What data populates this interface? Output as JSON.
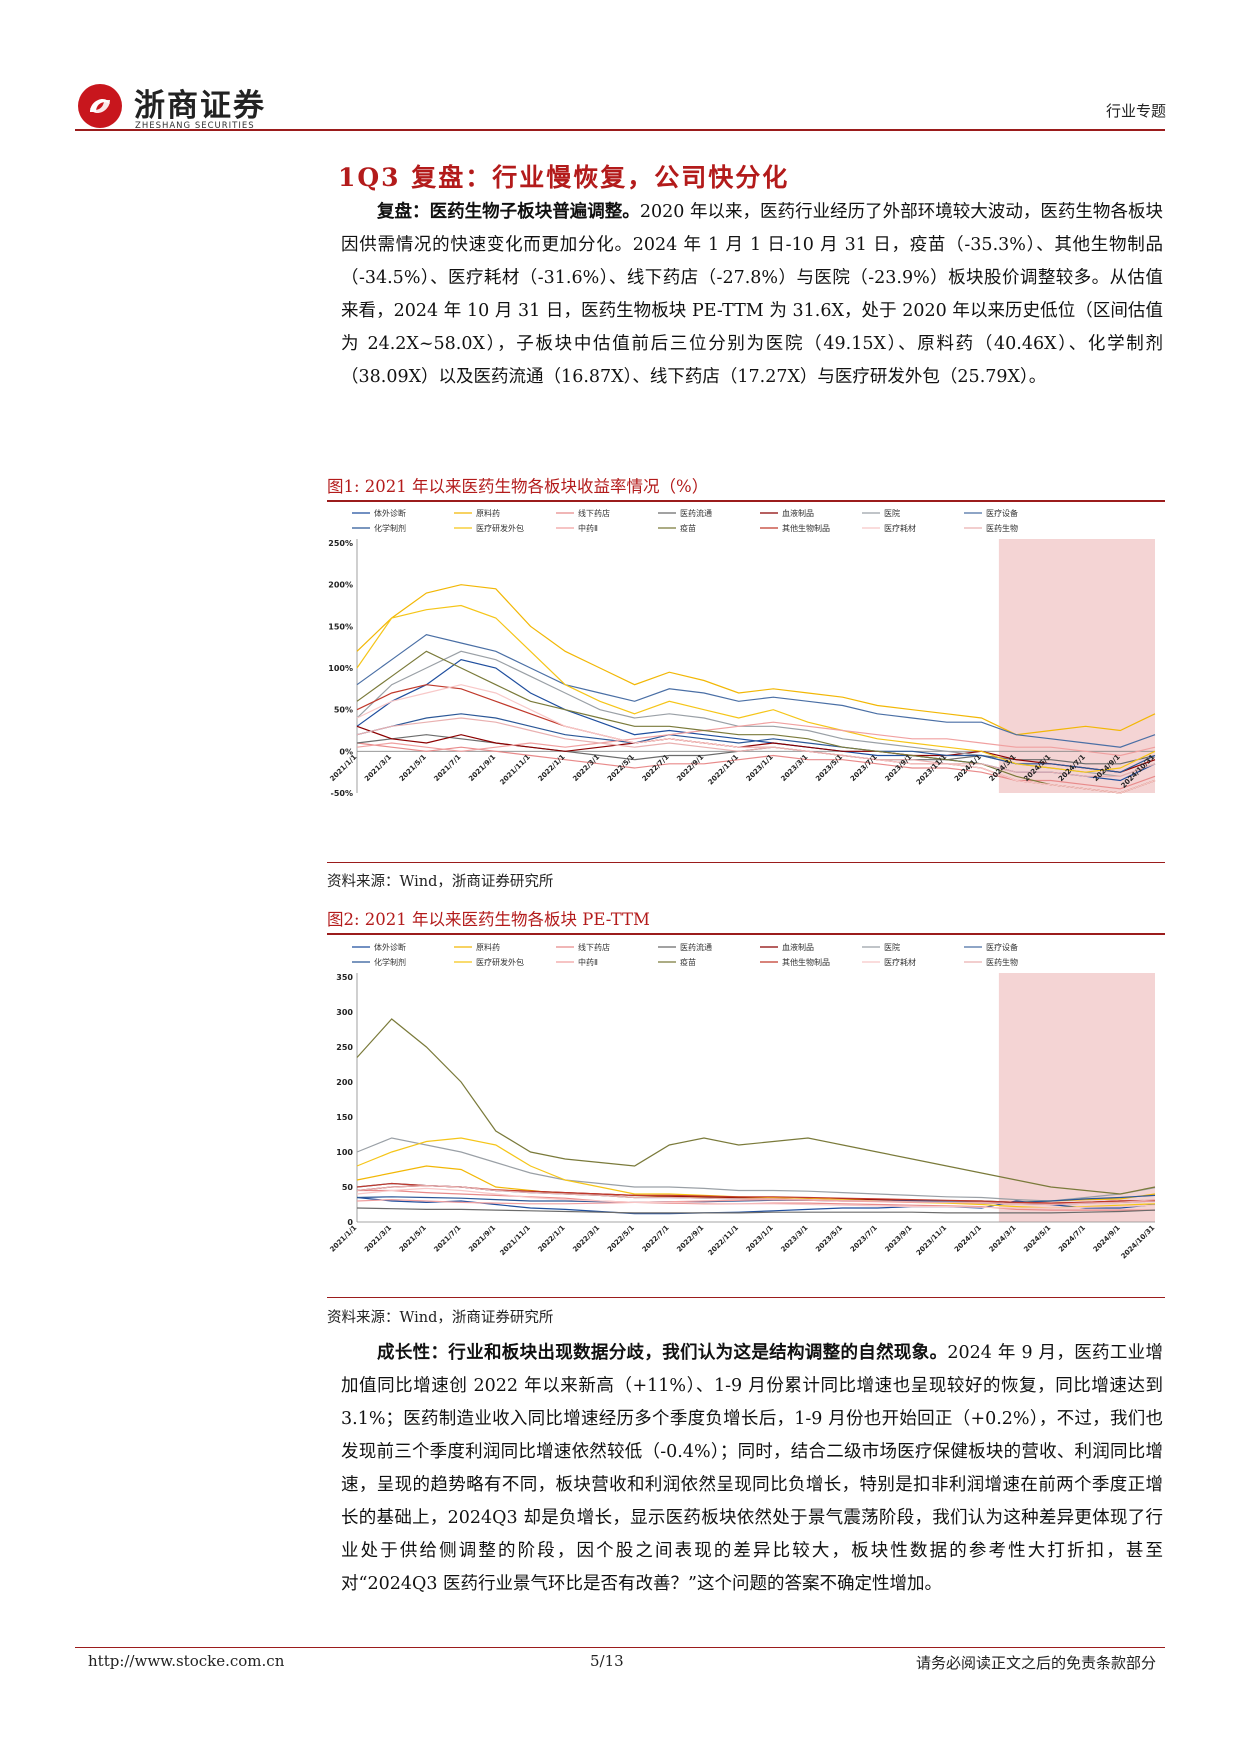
{
  "header": {
    "logo_cn": "浙商证券",
    "logo_en": "ZHESHANG SECURITIES",
    "tag": "行业专题"
  },
  "section": {
    "number": "1",
    "title": "Q3 复盘：行业慢恢复，公司快分化"
  },
  "para1": {
    "lead": "复盘：医药生物子板块普遍调整。",
    "body": "2020 年以来，医药行业经历了外部环境较大波动，医药生物各板块因供需情况的快速变化而更加分化。2024 年 1 月 1 日-10 月 31 日，疫苗（-35.3%）、其他生物制品（-34.5%）、医疗耗材（-31.6%）、线下药店（-27.8%）与医院（-23.9%）板块股价调整较多。从估值来看，2024 年 10 月 31 日，医药生物板块 PE-TTM 为 31.6X，处于 2020 年以来历史低位（区间估值为 24.2X~58.0X），子板块中估值前后三位分别为医院（49.15X）、原料药（40.46X）、化学制剂（38.09X）以及医药流通（16.87X）、线下药店（17.27X）与医疗研发外包（25.79X）。"
  },
  "fig1": {
    "title": "图1:   2021 年以来医药生物各板块收益率情况（%）",
    "source": "资料来源：Wind，浙商证券研究所"
  },
  "fig2": {
    "title": "图2:   2021 年以来医药生物各板块 PE-TTM",
    "source": "资料来源：Wind，浙商证券研究所"
  },
  "para2": {
    "lead": "成长性：行业和板块出现数据分歧，我们认为这是结构调整的自然现象。",
    "body": "2024 年 9 月，医药工业增加值同比增速创 2022 年以来新高（+11%）、1-9 月份累计同比增速也呈现较好的恢复，同比增速达到 3.1%；医药制造业收入同比增速经历多个季度负增长后，1-9 月份也开始回正（+0.2%），不过，我们也发现前三个季度利润同比增速依然较低（-0.4%）；同时，结合二级市场医疗保健板块的营收、利润同比增速，呈现的趋势略有不同，板块营收和利润依然呈现同比负增长，特别是扣非利润增速在前两个季度正增长的基础上，2024Q3 却是负增长，显示医药板块依然处于景气震荡阶段，我们认为这种差异更体现了行业处于供给侧调整的阶段，因个股之间表现的差异比较大，板块性数据的参考性大打折扣，甚至对“2024Q3 医药行业景气环比是否有改善？”这个问题的答案不确定性增加。"
  },
  "footer": {
    "url": "http://www.stocke.com.cn",
    "page": "5/13",
    "disclaimer": "请务必阅读正文之后的免责条款部分"
  },
  "colors": {
    "brand_red": "#b31b1b",
    "shade": "#f4d4d4"
  },
  "chart_data": [
    {
      "type": "line",
      "ylim": [
        -50,
        250
      ],
      "yticks": [
        "250%",
        "200%",
        "150%",
        "100%",
        "50%",
        "0%",
        "-50%"
      ],
      "highlight_region": "2024",
      "x": [
        "2021/1/1",
        "2021/3/1",
        "2021/5/1",
        "2021/7/1",
        "2021/9/1",
        "2021/11/1",
        "2022/1/1",
        "2022/3/1",
        "2022/5/1",
        "2022/7/1",
        "2022/9/1",
        "2022/11/1",
        "2023/1/1",
        "2023/3/1",
        "2023/5/1",
        "2023/7/1",
        "2023/9/1",
        "2023/11/1",
        "2024/1/1",
        "2024/3/1",
        "2024/5/1",
        "2024/7/1",
        "2024/9/1",
        "2024/10/31"
      ],
      "series": [
        {
          "name": "体外诊断",
          "color": "#1f4e9e",
          "values": [
            30,
            60,
            80,
            110,
            100,
            70,
            50,
            35,
            20,
            25,
            20,
            15,
            10,
            5,
            0,
            -5,
            -5,
            -10,
            -15,
            -25,
            -25,
            -30,
            -35,
            -15
          ]
        },
        {
          "name": "原料药",
          "color": "#f2b705",
          "values": [
            120,
            160,
            190,
            200,
            195,
            150,
            120,
            100,
            80,
            95,
            85,
            70,
            75,
            70,
            65,
            55,
            50,
            45,
            40,
            20,
            25,
            30,
            25,
            45
          ]
        },
        {
          "name": "线下药店",
          "color": "#e88a8a",
          "values": [
            10,
            5,
            0,
            5,
            0,
            -5,
            -10,
            -15,
            -20,
            -15,
            -15,
            -10,
            -5,
            -10,
            -10,
            -15,
            -20,
            -20,
            -25,
            -35,
            -35,
            -40,
            -45,
            -30
          ]
        },
        {
          "name": "医药流通",
          "color": "#6b6b6b",
          "values": [
            10,
            15,
            20,
            15,
            10,
            5,
            0,
            -5,
            -10,
            -5,
            -5,
            0,
            5,
            0,
            -5,
            -10,
            -10,
            -10,
            -5,
            -10,
            -10,
            -15,
            -15,
            -5
          ]
        },
        {
          "name": "血液制品",
          "color": "#8b0000",
          "values": [
            30,
            15,
            10,
            20,
            10,
            5,
            0,
            5,
            10,
            15,
            10,
            5,
            10,
            5,
            0,
            0,
            -5,
            -5,
            0,
            -10,
            -15,
            -20,
            -25,
            -10
          ]
        },
        {
          "name": "医院",
          "color": "#9aa0a6",
          "values": [
            40,
            80,
            100,
            120,
            110,
            90,
            70,
            50,
            40,
            45,
            40,
            30,
            30,
            25,
            15,
            10,
            5,
            0,
            -5,
            -15,
            -20,
            -25,
            -30,
            -15
          ]
        },
        {
          "name": "医疗设备",
          "color": "#4a6fa5",
          "values": [
            80,
            110,
            140,
            130,
            120,
            100,
            80,
            70,
            60,
            75,
            70,
            60,
            65,
            60,
            55,
            45,
            40,
            35,
            35,
            20,
            15,
            10,
            5,
            20
          ]
        },
        {
          "name": "化学制剂",
          "color": "#2b5797",
          "values": [
            20,
            30,
            40,
            45,
            40,
            30,
            20,
            15,
            10,
            20,
            15,
            10,
            15,
            10,
            5,
            0,
            0,
            -5,
            -5,
            -15,
            -15,
            -20,
            -25,
            -5
          ]
        },
        {
          "name": "医疗研发外包",
          "color": "#f5c518",
          "values": [
            100,
            160,
            170,
            175,
            160,
            120,
            80,
            60,
            45,
            60,
            50,
            40,
            50,
            35,
            25,
            15,
            10,
            5,
            0,
            -15,
            -20,
            -25,
            -20,
            0
          ]
        },
        {
          "name": "中药Ⅱ",
          "color": "#f0a0a0",
          "values": [
            5,
            10,
            5,
            0,
            5,
            10,
            5,
            10,
            15,
            20,
            25,
            30,
            35,
            30,
            25,
            20,
            15,
            15,
            10,
            5,
            5,
            0,
            -5,
            5
          ]
        },
        {
          "name": "疫苗",
          "color": "#7a7a3a",
          "values": [
            60,
            90,
            120,
            100,
            80,
            60,
            50,
            40,
            30,
            30,
            25,
            20,
            20,
            15,
            5,
            0,
            -5,
            -10,
            -15,
            -30,
            -40,
            -45,
            -50,
            -35
          ]
        },
        {
          "name": "其他生物制品",
          "color": "#c0392b",
          "values": [
            50,
            70,
            80,
            75,
            60,
            45,
            30,
            20,
            10,
            15,
            10,
            5,
            5,
            0,
            -5,
            -10,
            -15,
            -15,
            -20,
            -35,
            -40,
            -45,
            -50,
            -35
          ]
        },
        {
          "name": "医疗耗材",
          "color": "#f8c8c8",
          "values": [
            40,
            60,
            70,
            80,
            70,
            50,
            30,
            20,
            10,
            15,
            10,
            5,
            5,
            0,
            -5,
            -10,
            -15,
            -15,
            -20,
            -35,
            -40,
            -45,
            -50,
            -35
          ]
        },
        {
          "name": "医药生物",
          "color": "#e9b0b0",
          "values": [
            20,
            30,
            35,
            40,
            35,
            25,
            15,
            10,
            5,
            10,
            5,
            0,
            5,
            0,
            -5,
            -10,
            -10,
            -15,
            -15,
            -25,
            -25,
            -30,
            -30,
            -15
          ]
        }
      ]
    },
    {
      "type": "line",
      "ylim": [
        0,
        350
      ],
      "yticks": [
        "350",
        "300",
        "250",
        "200",
        "150",
        "100",
        "50",
        "0"
      ],
      "highlight_region": "2024",
      "x": [
        "2021/1/1",
        "2021/3/1",
        "2021/5/1",
        "2021/7/1",
        "2021/9/1",
        "2021/11/1",
        "2022/1/1",
        "2022/3/1",
        "2022/5/1",
        "2022/7/1",
        "2022/9/1",
        "2022/11/1",
        "2023/1/1",
        "2023/3/1",
        "2023/5/1",
        "2023/7/1",
        "2023/9/1",
        "2023/11/1",
        "2024/1/1",
        "2024/3/1",
        "2024/5/1",
        "2024/7/1",
        "2024/9/1",
        "2024/10/31"
      ],
      "series": [
        {
          "name": "体外诊断",
          "color": "#1f4e9e",
          "values": [
            35,
            30,
            28,
            30,
            25,
            20,
            18,
            15,
            12,
            12,
            13,
            14,
            16,
            18,
            20,
            20,
            22,
            22,
            20,
            30,
            25,
            20,
            20,
            25
          ]
        },
        {
          "name": "原料药",
          "color": "#f2b705",
          "values": [
            60,
            70,
            80,
            75,
            50,
            45,
            40,
            38,
            35,
            36,
            35,
            34,
            35,
            34,
            33,
            32,
            31,
            30,
            30,
            28,
            30,
            32,
            33,
            40
          ]
        },
        {
          "name": "线下药店",
          "color": "#e88a8a",
          "values": [
            45,
            45,
            42,
            40,
            38,
            36,
            34,
            30,
            28,
            27,
            26,
            26,
            27,
            27,
            26,
            25,
            24,
            23,
            22,
            18,
            17,
            17,
            17,
            17
          ]
        },
        {
          "name": "医药流通",
          "color": "#6b6b6b",
          "values": [
            20,
            19,
            18,
            18,
            17,
            16,
            15,
            14,
            13,
            13,
            13,
            13,
            14,
            14,
            14,
            14,
            14,
            13,
            13,
            13,
            13,
            14,
            15,
            17
          ]
        },
        {
          "name": "血液制品",
          "color": "#8b0000",
          "values": [
            45,
            50,
            52,
            50,
            45,
            44,
            42,
            40,
            38,
            37,
            36,
            35,
            35,
            34,
            33,
            32,
            31,
            30,
            29,
            28,
            27,
            28,
            30,
            30
          ]
        },
        {
          "name": "医院",
          "color": "#9aa0a6",
          "values": [
            100,
            120,
            110,
            100,
            85,
            70,
            60,
            55,
            50,
            50,
            48,
            45,
            45,
            44,
            42,
            40,
            38,
            36,
            35,
            32,
            30,
            35,
            40,
            49
          ]
        },
        {
          "name": "医疗设备",
          "color": "#4a6fa5",
          "values": [
            50,
            55,
            52,
            50,
            45,
            42,
            40,
            38,
            35,
            35,
            34,
            33,
            32,
            31,
            30,
            30,
            29,
            28,
            27,
            26,
            25,
            27,
            28,
            30
          ]
        },
        {
          "name": "化学制剂",
          "color": "#2b5797",
          "values": [
            35,
            36,
            35,
            34,
            32,
            30,
            30,
            29,
            28,
            29,
            29,
            30,
            31,
            31,
            31,
            30,
            30,
            30,
            30,
            28,
            30,
            33,
            35,
            38
          ]
        },
        {
          "name": "医疗研发外包",
          "color": "#f5c518",
          "values": [
            80,
            100,
            115,
            120,
            110,
            80,
            60,
            50,
            40,
            40,
            38,
            36,
            35,
            34,
            32,
            30,
            28,
            27,
            25,
            22,
            20,
            22,
            24,
            26
          ]
        },
        {
          "name": "中药Ⅱ",
          "color": "#f0a0a0",
          "values": [
            30,
            32,
            30,
            28,
            27,
            26,
            26,
            27,
            28,
            29,
            30,
            31,
            32,
            31,
            30,
            29,
            28,
            28,
            27,
            26,
            26,
            27,
            28,
            30
          ]
        },
        {
          "name": "疫苗",
          "color": "#7a7a3a",
          "values": [
            235,
            290,
            250,
            200,
            130,
            100,
            90,
            85,
            80,
            110,
            120,
            110,
            115,
            120,
            110,
            100,
            90,
            80,
            70,
            60,
            50,
            45,
            40,
            50
          ]
        },
        {
          "name": "其他生物制品",
          "color": "#c0392b",
          "values": [
            50,
            55,
            52,
            50,
            46,
            44,
            42,
            40,
            38,
            38,
            37,
            36,
            36,
            35,
            34,
            33,
            32,
            31,
            30,
            28,
            27,
            28,
            30,
            31
          ]
        },
        {
          "name": "医疗耗材",
          "color": "#f8c8c8",
          "values": [
            40,
            45,
            48,
            45,
            40,
            35,
            32,
            30,
            28,
            28,
            27,
            26,
            26,
            25,
            24,
            23,
            22,
            22,
            21,
            20,
            20,
            21,
            22,
            24
          ]
        },
        {
          "name": "医药生物",
          "color": "#e9b0b0",
          "values": [
            45,
            50,
            52,
            50,
            45,
            42,
            40,
            38,
            35,
            35,
            34,
            33,
            33,
            32,
            31,
            30,
            29,
            28,
            28,
            26,
            25,
            27,
            28,
            32
          ]
        }
      ]
    }
  ]
}
